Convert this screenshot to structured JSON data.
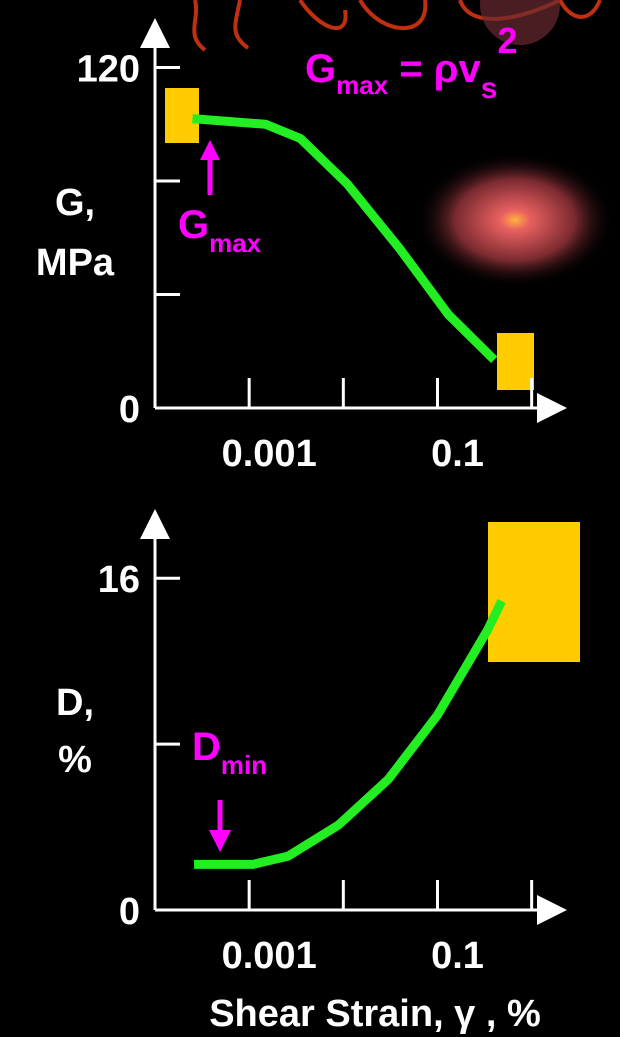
{
  "chart_data": [
    {
      "type": "line",
      "ylabel": [
        "G,",
        "MPa"
      ],
      "annotation": {
        "text": "G",
        "sub": "max"
      },
      "formula": {
        "base": "G",
        "sub": "max",
        "mid": " = ρv",
        "sub2": "s",
        "sup": "2"
      },
      "series": [
        {
          "color": "#22ee22",
          "x": [
            0.00025,
            0.0015,
            0.0035,
            0.011,
            0.04,
            0.13,
            0.4
          ],
          "values": [
            102,
            100,
            95,
            79,
            56,
            33,
            17
          ]
        }
      ],
      "xscale": "log",
      "xlim": [
        0.0001,
        2
      ],
      "xticks": [
        0.001,
        0.1
      ],
      "xminor": [
        0.01,
        1
      ],
      "ylim": [
        0,
        135
      ],
      "yticks": [
        0,
        120
      ],
      "yminor": [
        40,
        80
      ]
    },
    {
      "type": "line",
      "ylabel": [
        "D,",
        "%"
      ],
      "xlabel": "Shear Strain, γ , %",
      "annotation": {
        "text": "D",
        "sub": "min"
      },
      "series": [
        {
          "color": "#22ee22",
          "x": [
            0.00026,
            0.0011,
            0.0026,
            0.0089,
            0.03,
            0.1,
            0.34,
            0.48
          ],
          "values": [
            2.2,
            2.2,
            2.6,
            4.1,
            6.3,
            9.4,
            13.5,
            14.9
          ]
        }
      ],
      "xscale": "log",
      "xlim": [
        0.0001,
        2
      ],
      "xticks": [
        0.001,
        0.1
      ],
      "xminor": [
        0.01,
        1
      ],
      "ylim": [
        0,
        19
      ],
      "yticks": [
        0,
        16
      ],
      "yminor": [
        8
      ]
    }
  ]
}
